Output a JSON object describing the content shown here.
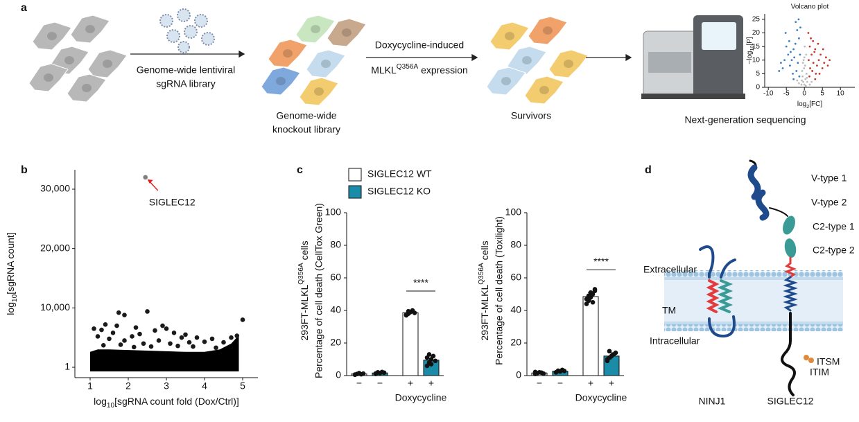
{
  "panel_labels": [
    "a",
    "b",
    "c",
    "d"
  ],
  "panel_a": {
    "step1": [
      "Genome-wide lentiviral",
      "sgRNA library"
    ],
    "library": [
      "Genome-wide",
      "knockout library"
    ],
    "step2_line1": "Doxycycline-induced",
    "step2_line2": {
      "before": "MLKL",
      "sup": "Q356A",
      "after": " expression"
    },
    "survivors": "Survivors",
    "sequencing": "Next-generation sequencing"
  },
  "chart_data": [
    {
      "type": "scatter",
      "title": "Volcano plot",
      "x_label": {
        "before": "log",
        "sub": "2",
        "after": "[FC]"
      },
      "y_label": {
        "before": "−log",
        "sub": "10",
        "after": "[P]"
      },
      "xlim": [
        -11,
        14
      ],
      "xticks": [
        -10,
        -5,
        0,
        5,
        10
      ],
      "ylim": [
        0,
        27
      ],
      "yticks": [
        0,
        5,
        10,
        15,
        20,
        25
      ],
      "series": [
        {
          "color": "#bdbdbd",
          "x": [
            0,
            0.3,
            -0.3,
            0.6,
            -0.6,
            0.2,
            -0.2,
            0.5,
            -0.5,
            0.8,
            -0.8,
            0.1,
            -0.1,
            0.4,
            -0.4,
            0.7,
            -0.7,
            0,
            1.5,
            -1.5,
            2,
            -2
          ],
          "values": [
            1,
            3,
            2,
            5,
            6,
            8,
            10,
            12,
            4,
            2,
            1,
            15,
            7,
            0.5,
            9,
            3.5,
            2.5,
            11,
            1,
            1.5,
            2,
            2.5
          ]
        },
        {
          "color": "#3a7dc0",
          "x": [
            -1.2,
            -1.5,
            -2,
            -2.5,
            -3,
            -3.5,
            -4,
            -1.8,
            -2.2,
            -3.2,
            -4.5,
            -5,
            -5.5,
            -6,
            -1.4,
            -2.8,
            -3.8,
            -1.1,
            -1.6,
            -7,
            -4.2,
            -2.4,
            -5.2,
            -6.5,
            -3
          ],
          "values": [
            12,
            18,
            21,
            16,
            14,
            10,
            8,
            9,
            6,
            5,
            12,
            15,
            10,
            7,
            4,
            11,
            13,
            22,
            25,
            6,
            17,
            24,
            20,
            9,
            3
          ]
        },
        {
          "color": "#c0392b",
          "x": [
            1.2,
            1.5,
            2,
            2.5,
            3,
            3.5,
            4,
            1.8,
            2.2,
            3.2,
            4.5,
            5,
            5.5,
            6,
            1.4,
            2.8,
            3.8,
            1.1,
            1.6,
            6.5,
            4.2,
            2.4,
            5.2,
            7,
            3
          ],
          "values": [
            10,
            15,
            12,
            9,
            14,
            8,
            10,
            18,
            6,
            5,
            12,
            7,
            9,
            11,
            4,
            13,
            16,
            20,
            7,
            8,
            5,
            17,
            14,
            10,
            3
          ]
        }
      ]
    },
    {
      "type": "scatter",
      "x_label": {
        "before": "log",
        "sub": "10",
        "after": "[sgRNA count fold (Dox/Ctrl)]"
      },
      "y_label": {
        "before": "log",
        "sub": "10",
        "after": "[sgRNA count]"
      },
      "xlim": [
        0.6,
        5.4
      ],
      "xticks": [
        1,
        2,
        3,
        4,
        5
      ],
      "ylim": [
        -1750,
        33270
      ],
      "yticks": [
        1,
        {
          "value": 10000,
          "label": "10,000"
        },
        {
          "value": 20000,
          "label": "20,000"
        },
        {
          "value": 30000,
          "label": "30,000"
        }
      ],
      "series": [
        {
          "color": "#000000",
          "style": "area",
          "x": [
            1,
            1.2,
            1.5,
            2,
            2.5,
            3,
            3.5,
            4,
            4.4,
            4.7,
            4.9
          ],
          "values": [
            2600,
            3000,
            3000,
            2900,
            2800,
            2700,
            2600,
            2600,
            3000,
            4000,
            5400
          ]
        },
        {
          "color": "#1a1a1a",
          "x": [
            1.75,
            1.9,
            2.5,
            3.0,
            3.5,
            5.0,
            1.1,
            1.3,
            1.4,
            1.6,
            1.7,
            2.2,
            2.3,
            2.7,
            2.9,
            3.2,
            3.4,
            3.8,
            4.2,
            1.2,
            1.5,
            1.9,
            2.1,
            2.4,
            2.8,
            3.1,
            3.6,
            4.0,
            4.5,
            4.7,
            4.85,
            1.8,
            2.6,
            3.3,
            3.7,
            4.3,
            1.35,
            2.15
          ],
          "values": [
            9200,
            8800,
            9400,
            6500,
            5500,
            8000,
            6500,
            6300,
            7200,
            5800,
            7000,
            6700,
            5600,
            6200,
            7000,
            5800,
            5000,
            5000,
            4800,
            5200,
            4800,
            4500,
            5200,
            4000,
            4500,
            4000,
            4200,
            4300,
            4200,
            5000,
            5300,
            3800,
            3500,
            3600,
            3500,
            3300,
            3700,
            3400
          ]
        },
        {
          "color": "#7f7f7f",
          "name": "SIGLEC12",
          "x": [
            2.45
          ],
          "values": [
            32000
          ],
          "label_color": "#e02020"
        }
      ]
    },
    {
      "type": "bar",
      "y_label": [
        {
          "before": "293FT-MLKL",
          "sup": "Q356A",
          "after": " cells"
        },
        "Percentage of cell death (CellTox Green)"
      ],
      "x_label": "Doxycycline",
      "categories": [
        "−",
        "−",
        "+",
        "+"
      ],
      "ylim": [
        0,
        100
      ],
      "yticks": [
        0,
        20,
        40,
        60,
        80,
        100
      ],
      "significance": {
        "label": "****",
        "between": [
          2,
          3
        ]
      },
      "series": [
        {
          "name": "SIGLEC12 WT",
          "color": "#ffffff",
          "values": [
            1,
            null,
            38.6,
            null
          ],
          "errors": [
            0.5,
            null,
            1.2,
            null
          ],
          "points": [
            [
              0.5,
              1,
              1.5,
              0.8,
              1.2,
              0.6
            ],
            null,
            [
              37,
              38,
              39,
              40,
              38.5,
              37.5,
              39.5
            ],
            null
          ]
        },
        {
          "name": "SIGLEC12 KO",
          "color": "#1a8ca8",
          "values": [
            null,
            1.6,
            null,
            9.5
          ],
          "errors": [
            null,
            0.5,
            null,
            2.5
          ],
          "points": [
            null,
            [
              1,
              2,
              1.5,
              2.2,
              1.8,
              1.3
            ],
            null,
            [
              6,
              8,
              10,
              12,
              9,
              11,
              13,
              7
            ]
          ]
        }
      ]
    },
    {
      "type": "bar",
      "y_label": [
        {
          "before": "293FT-MLKL",
          "sup": "Q356A",
          "after": " cells"
        },
        "Percentage of cell death (Toxilight)"
      ],
      "x_label": "Doxycycline",
      "categories": [
        "−",
        "−",
        "+",
        "+"
      ],
      "ylim": [
        0,
        100
      ],
      "yticks": [
        0,
        20,
        40,
        60,
        80,
        100
      ],
      "significance": {
        "label": "****",
        "between": [
          2,
          3
        ]
      },
      "series": [
        {
          "color": "#ffffff",
          "values": [
            1.6,
            null,
            48.5,
            null
          ],
          "errors": [
            0.5,
            null,
            2.5,
            null
          ],
          "points": [
            [
              1,
              1.5,
              2,
              1.8,
              1.2,
              2.2
            ],
            null,
            [
              44,
              46,
              48,
              50,
              52,
              47,
              49,
              51,
              45,
              53
            ],
            null
          ]
        },
        {
          "color": "#1a8ca8",
          "values": [
            null,
            2.7,
            null,
            12
          ],
          "errors": [
            null,
            0.6,
            null,
            2
          ],
          "points": [
            null,
            [
              2,
              3,
              2.5,
              3.5,
              2.8,
              2
            ],
            null,
            [
              9,
              11,
              12,
              13,
              14,
              10,
              15,
              12
            ]
          ]
        }
      ]
    }
  ],
  "panel_d": {
    "domains": [
      "V-type 1",
      "V-type 2",
      "C2-type 1",
      "C2-type 2"
    ],
    "extracellular": "Extracellular",
    "tm": "TM",
    "intracellular": "Intracellular",
    "itsm": "ITSM",
    "itim": "ITIM",
    "proteins": [
      "NINJ1",
      "SIGLEC12"
    ]
  }
}
